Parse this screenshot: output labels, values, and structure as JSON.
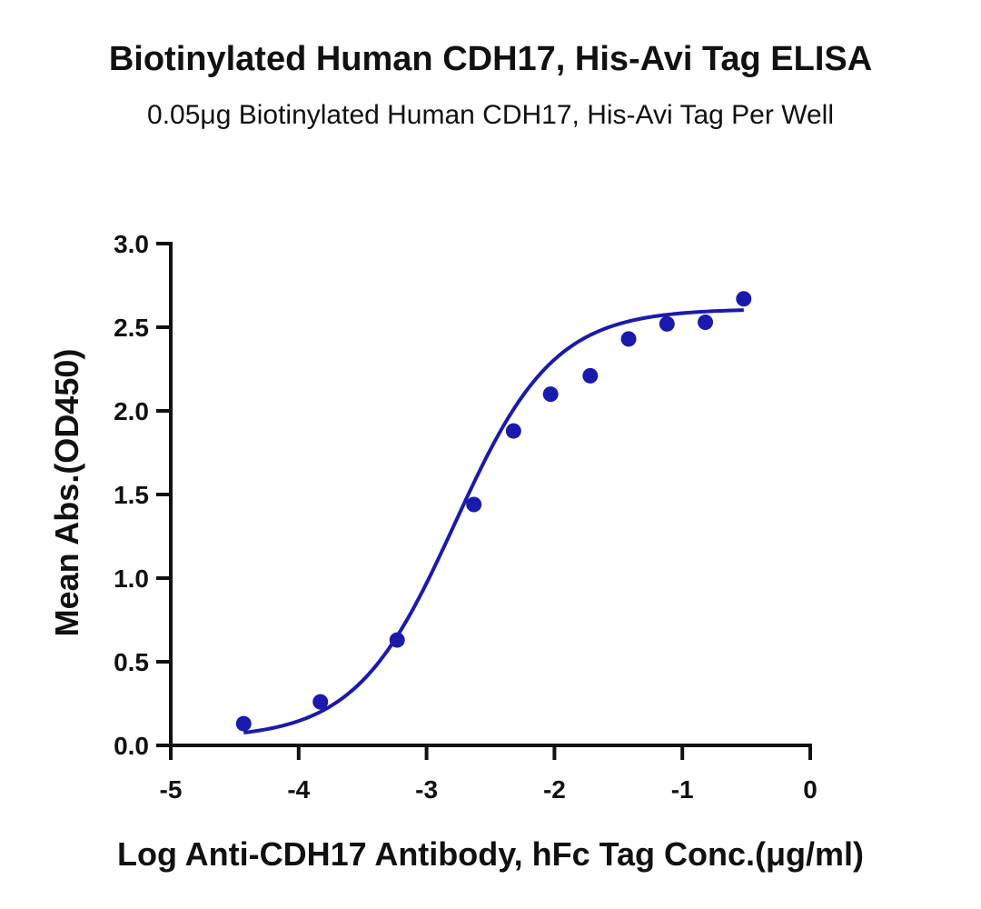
{
  "chart_data": {
    "type": "scatter",
    "title": "Biotinylated Human CDH17, His-Avi Tag ELISA",
    "subtitle": "0.05μg Biotinylated Human CDH17, His-Avi Tag Per Well",
    "xlabel": "Log Anti-CDH17 Antibody, hFc Tag Conc.(μg/ml)",
    "ylabel": "Mean Abs.(OD450)",
    "xlim": [
      -5,
      0
    ],
    "ylim": [
      0.0,
      3.0
    ],
    "xticks": [
      -5,
      -4,
      -3,
      -2,
      -1,
      0
    ],
    "xtick_labels": [
      "-5",
      "-4",
      "-3",
      "-2",
      "-1",
      "0"
    ],
    "yticks": [
      0.0,
      0.5,
      1.0,
      1.5,
      2.0,
      2.5,
      3.0
    ],
    "ytick_labels": [
      "0.0",
      "0.5",
      "1.0",
      "1.5",
      "2.0",
      "2.5",
      "3.0"
    ],
    "grid": false,
    "legend": "none",
    "color": "#1a1aad",
    "series": [
      {
        "x": [
          -4.43,
          -3.83,
          -3.23,
          -2.63,
          -2.32,
          -2.03,
          -1.72,
          -1.42,
          -1.12,
          -0.82,
          -0.52
        ],
        "y": [
          0.13,
          0.26,
          0.63,
          1.44,
          1.88,
          2.1,
          2.21,
          2.43,
          2.52,
          2.53,
          2.67
        ]
      }
    ],
    "fit_curve": {
      "model": "4PL",
      "bottom": 0.04,
      "top": 2.61,
      "logEC50": -2.78,
      "hill": 1.12,
      "x_range": [
        -4.43,
        -0.52
      ]
    }
  }
}
